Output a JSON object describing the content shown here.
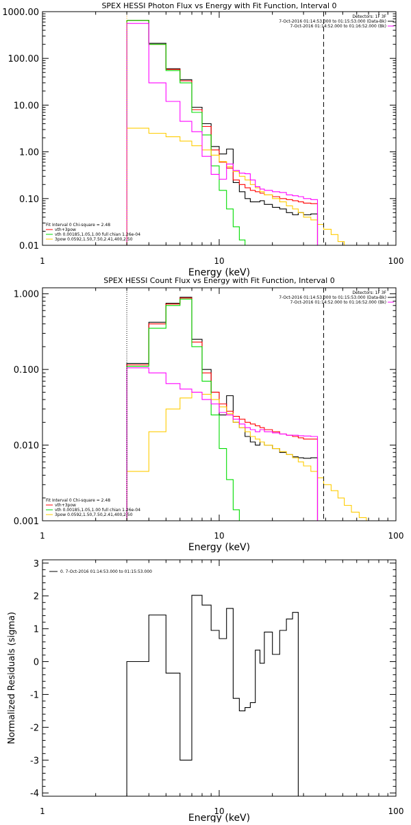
{
  "chart_data": [
    {
      "type": "line",
      "title": "SPEX HESSI Photon Flux vs Energy with Fit Function, Interval 0",
      "xlabel": "Energy (keV)",
      "ylabel": "",
      "xscale": "log",
      "yscale": "log",
      "xlim": [
        1,
        100
      ],
      "ylim": [
        0.01,
        1000
      ],
      "xticks": [
        {
          "v": 1,
          "label": "1"
        },
        {
          "v": 10,
          "label": "10"
        },
        {
          "v": 100,
          "label": "100"
        }
      ],
      "yticks": [
        {
          "v": 0.01,
          "label": "0.01"
        },
        {
          "v": 0.1,
          "label": "0.10"
        },
        {
          "v": 1,
          "label": "1.00"
        },
        {
          "v": 10,
          "label": "10.00"
        },
        {
          "v": 100,
          "label": "100.00"
        },
        {
          "v": 1000,
          "label": "1000.00"
        }
      ],
      "bin_edges": [
        3.0,
        4.0,
        5.0,
        6.0,
        7.0,
        8.0,
        9.0,
        10.0,
        11.0,
        12.0,
        13.0,
        14.0,
        15.0,
        16.0,
        17.0,
        18.0,
        20.0,
        22.0,
        24.0,
        26.0,
        28.0,
        30.0,
        33.0,
        36.0,
        39.0,
        43.0,
        47.0,
        51.0
      ],
      "series": [
        {
          "name": "",
          "color": "#000000",
          "values": [
            650,
            210,
            60,
            35,
            9,
            4,
            1.3,
            0.9,
            1.15,
            0.22,
            0.14,
            0.1,
            0.085,
            0.085,
            0.09,
            0.075,
            0.065,
            0.06,
            0.05,
            0.045,
            0.05,
            0.045,
            0.047
          ]
        },
        {
          "name": "vth+3pow",
          "color": "#ff0000",
          "values": [
            650,
            200,
            58,
            33,
            8,
            3.5,
            1.1,
            0.6,
            0.45,
            0.25,
            0.2,
            0.17,
            0.15,
            0.14,
            0.13,
            0.12,
            0.11,
            0.1,
            0.095,
            0.09,
            0.085,
            0.08,
            0.078
          ]
        },
        {
          "name": "vth 0.00185,1.05,1.00 full chian 1.26e-04",
          "color": "#00dd00",
          "values": [
            650,
            200,
            55,
            30,
            7,
            2.3,
            0.5,
            0.15,
            0.06,
            0.025,
            0.013
          ]
        },
        {
          "name": "3pow 0.0592,1.50,7.50,2.41,400,2.50",
          "color": "#ffcc00",
          "values": [
            3.2,
            2.5,
            2.1,
            1.7,
            1.35,
            1.1,
            0.85,
            0.62,
            0.48,
            0.38,
            0.3,
            0.25,
            0.2,
            0.17,
            0.14,
            0.12,
            0.1,
            0.085,
            0.07,
            0.06,
            0.05,
            0.04,
            0.035,
            0.028,
            0.022,
            0.017,
            0.012
          ]
        },
        {
          "name": "",
          "color": "#ff00ff",
          "values": [
            560,
            30,
            12,
            4.5,
            2.7,
            0.8,
            0.33,
            0.26,
            0.55,
            0.4,
            0.35,
            0.34,
            0.25,
            0.18,
            0.16,
            0.15,
            0.14,
            0.135,
            0.12,
            0.115,
            0.11,
            0.1,
            0.095
          ]
        }
      ],
      "vlines": [
        {
          "x": 3.0,
          "style": "dotted",
          "color": "#ffaa00"
        },
        {
          "x": 39.0,
          "style": "dashed",
          "color": "#000000"
        }
      ],
      "header": [
        "Detectors: 1F 3F",
        "7-Oct-2016 01:14:53.000 to 01:15:53.000 (Data-Bk)",
        "7-Oct-2016 01:14:52.000 to 01:16:52.000 (Bk)"
      ],
      "legend_title": "Fit Interval  0   Chi-square = 2.48",
      "legend": [
        "vth+3pow",
        "vth 0.00185,1.05,1.00  full chian 1.26e-04",
        "3pow 0.0592,1.50,7.50,2.41,400,2.50"
      ],
      "grid": false
    },
    {
      "type": "line",
      "title": "SPEX HESSI Count Flux vs Energy with Fit Function, Interval 0",
      "xlabel": "Energy (keV)",
      "ylabel": "",
      "xscale": "log",
      "yscale": "log",
      "xlim": [
        1,
        100
      ],
      "ylim": [
        0.001,
        1.2
      ],
      "xticks": [
        {
          "v": 1,
          "label": "1"
        },
        {
          "v": 10,
          "label": "10"
        },
        {
          "v": 100,
          "label": "100"
        }
      ],
      "yticks": [
        {
          "v": 0.001,
          "label": "0.001"
        },
        {
          "v": 0.01,
          "label": "0.010"
        },
        {
          "v": 0.1,
          "label": "0.100"
        },
        {
          "v": 1,
          "label": "1.000"
        }
      ],
      "bin_edges": [
        3.0,
        4.0,
        5.0,
        6.0,
        7.0,
        8.0,
        9.0,
        10.0,
        11.0,
        12.0,
        13.0,
        14.0,
        15.0,
        16.0,
        17.0,
        18.0,
        20.0,
        22.0,
        24.0,
        26.0,
        28.0,
        30.0,
        33.0,
        36.0,
        39.0,
        43.0,
        47.0,
        51.0,
        56.0,
        62.0,
        68.0,
        75.0
      ],
      "series": [
        {
          "name": "",
          "color": "#000000",
          "values": [
            0.12,
            0.42,
            0.75,
            0.9,
            0.25,
            0.1,
            0.05,
            0.025,
            0.045,
            0.02,
            0.017,
            0.013,
            0.011,
            0.01,
            0.011,
            0.01,
            0.009,
            0.008,
            0.0075,
            0.007,
            0.0068,
            0.0067,
            0.0068
          ]
        },
        {
          "name": "vth+3pow",
          "color": "#ff0000",
          "values": [
            0.115,
            0.4,
            0.73,
            0.88,
            0.23,
            0.09,
            0.05,
            0.035,
            0.028,
            0.024,
            0.022,
            0.02,
            0.019,
            0.018,
            0.017,
            0.016,
            0.015,
            0.014,
            0.0135,
            0.013,
            0.0125,
            0.012,
            0.012
          ]
        },
        {
          "name": "vth 0.00185,1.05,1.00 full chian 1.26e-04",
          "color": "#00dd00",
          "values": [
            0.11,
            0.35,
            0.7,
            0.85,
            0.2,
            0.07,
            0.025,
            0.009,
            0.0035,
            0.0014
          ]
        },
        {
          "name": "3pow 0.0592,1.50,7.50,2.41,400,2.50",
          "color": "#ffcc00",
          "values": [
            0.0045,
            0.015,
            0.03,
            0.042,
            0.05,
            0.047,
            0.04,
            0.032,
            0.026,
            0.02,
            0.017,
            0.015,
            0.013,
            0.012,
            0.011,
            0.01,
            0.009,
            0.0082,
            0.0075,
            0.0068,
            0.006,
            0.0053,
            0.0045,
            0.0037,
            0.003,
            0.0025,
            0.002,
            0.0016,
            0.0013,
            0.0011,
            0.001
          ]
        },
        {
          "name": "",
          "color": "#ff00ff",
          "values": [
            0.105,
            0.09,
            0.065,
            0.055,
            0.05,
            0.04,
            0.035,
            0.027,
            0.025,
            0.022,
            0.019,
            0.017,
            0.016,
            0.015,
            0.016,
            0.015,
            0.0145,
            0.014,
            0.0135,
            0.0135,
            0.0133,
            0.0132,
            0.013
          ]
        }
      ],
      "vlines": [
        {
          "x": 3.0,
          "style": "dotted",
          "color": "#000000"
        },
        {
          "x": 39.0,
          "style": "dashed",
          "color": "#000000"
        }
      ],
      "header": [
        "Detectors: 1F 3F",
        "7-Oct-2016 01:14:53.000 to 01:15:53.000 (Data-Bk)",
        "7-Oct-2016 01:14:52.000 to 01:16:52.000 (Bk)"
      ],
      "legend_title": "Fit Interval  0   Chi-square = 2.48",
      "legend": [
        "vth+3pow",
        "vth 0.00185,1.05,1.00  full chian 1.26e-04",
        "3pow 0.0592,1.50,7.50,2.41,400,2.50"
      ],
      "grid": false
    },
    {
      "type": "line",
      "title": "",
      "xlabel": "Energy (keV)",
      "ylabel": "Normalized Residuals (sigma)",
      "xscale": "log",
      "yscale": "linear",
      "xlim": [
        1,
        100
      ],
      "ylim": [
        -4.1,
        3.1
      ],
      "xticks": [
        {
          "v": 1,
          "label": "1"
        },
        {
          "v": 10,
          "label": "10"
        },
        {
          "v": 100,
          "label": "100"
        }
      ],
      "yticks": [
        {
          "v": -4,
          "label": "-4"
        },
        {
          "v": -3,
          "label": "-3"
        },
        {
          "v": -2,
          "label": "-2"
        },
        {
          "v": -1,
          "label": "-1"
        },
        {
          "v": 0,
          "label": "0"
        },
        {
          "v": 1,
          "label": "1"
        },
        {
          "v": 2,
          "label": "2"
        },
        {
          "v": 3,
          "label": "3"
        }
      ],
      "bin_edges": [
        3.0,
        4.0,
        5.0,
        6.0,
        7.0,
        8.0,
        9.0,
        10.0,
        11.0,
        12.0,
        13.0,
        14.0,
        15.0,
        16.0,
        17.0,
        18.0,
        20.0,
        22.0,
        24.0,
        26.0,
        28.0,
        30.0,
        33.0,
        36.0,
        39.0
      ],
      "series": [
        {
          "name": "0.  7-Oct-2016 01:14:53.000 to 01:15:53.000",
          "color": "#000000",
          "values": [
            0.0,
            1.42,
            -0.35,
            -3.0,
            2.02,
            1.72,
            0.95,
            0.7,
            1.62,
            -1.12,
            -1.5,
            -1.4,
            -1.25,
            0.35,
            -0.05,
            0.9,
            0.22,
            0.95,
            1.3,
            1.5
          ]
        }
      ],
      "vlines": [],
      "header": [],
      "legend_title": "",
      "legend": [
        "0.  7-Oct-2016 01:14:53.000 to 01:15:53.000"
      ],
      "grid": false
    }
  ]
}
